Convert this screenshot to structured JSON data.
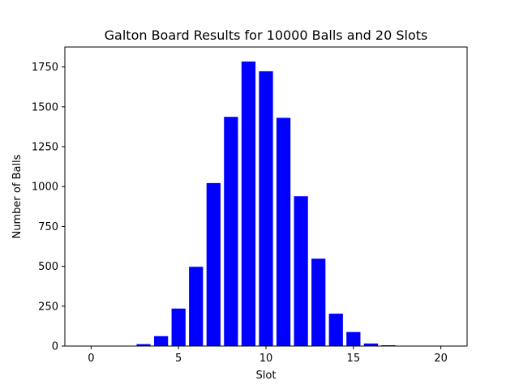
{
  "chart_data": {
    "type": "bar",
    "title": "Galton Board Results for 10000 Balls and 20 Slots",
    "xlabel": "Slot",
    "ylabel": "Number of Balls",
    "xlim": [
      -1.5,
      21.5
    ],
    "ylim": [
      0,
      1875
    ],
    "xticks": [
      0,
      5,
      10,
      15,
      20
    ],
    "yticks": [
      0,
      250,
      500,
      750,
      1000,
      1250,
      1500,
      1750
    ],
    "bar_color": "#0000ff",
    "bar_width": 0.8,
    "grid": false,
    "x": [
      0,
      1,
      2,
      3,
      4,
      5,
      6,
      7,
      8,
      9,
      10,
      11,
      12,
      13,
      14,
      15,
      16,
      17,
      18,
      19,
      20
    ],
    "values": [
      0,
      0,
      1,
      12,
      62,
      235,
      497,
      1022,
      1437,
      1784,
      1723,
      1431,
      939,
      548,
      203,
      88,
      16,
      5,
      0,
      0,
      0
    ]
  }
}
